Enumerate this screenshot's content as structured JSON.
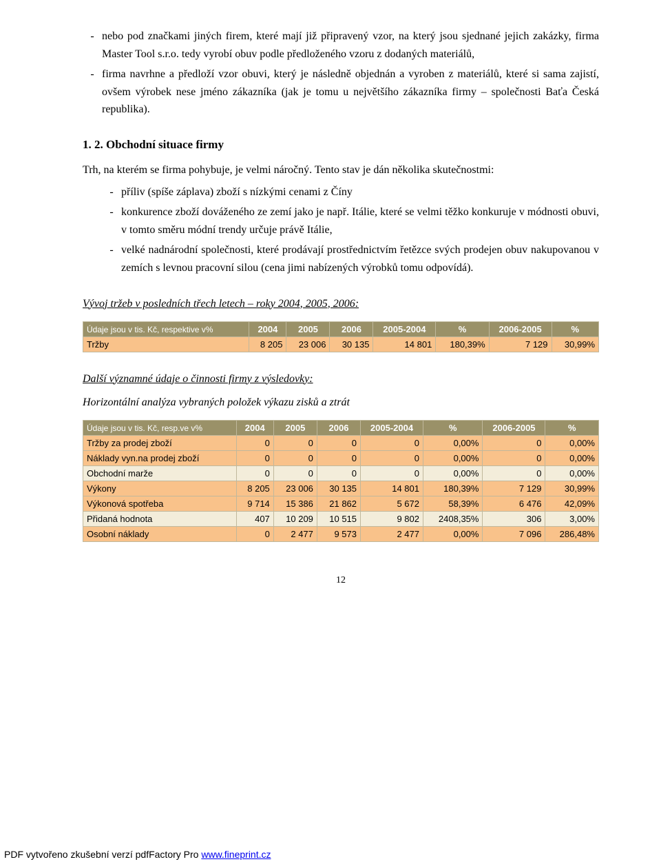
{
  "bullets_top": [
    "nebo pod značkami jiných firem, které mají již připravený vzor, na který jsou sjednané jejich zakázky, firma Master Tool s.r.o. tedy vyrobí obuv podle předloženého vzoru z dodaných materiálů,",
    "firma navrhne a předloží vzor obuvi, který je následně objednán a vyroben z materiálů, které si sama zajistí, ovšem výrobek nese jméno zákazníka (jak je tomu u největšího zákazníka firmy – společnosti Baťa Česká republika)."
  ],
  "heading": "1. 2. Obchodní situace firmy",
  "para1": "Trh, na kterém se firma pohybuje, je velmi náročný. Tento stav je dán několika skutečnostmi:",
  "bullets_mid": [
    "příliv (spíše záplava) zboží s nízkými cenami z Číny",
    "konkurence zboží dováženého ze zemí jako je např. Itálie, které se velmi těžko konkuruje v módnosti obuvi, v tomto směru módní trendy určuje právě Itálie,",
    "velké nadnárodní společnosti, které prodávají prostřednictvím řetězce svých prodejen obuv nakupovanou v zemích s levnou pracovní silou (cena jimi nabízených výrobků tomu odpovídá)."
  ],
  "section1": "Vývoj tržeb v posledních třech letech – roky 2004, 2005, 2006:",
  "table1": {
    "hdr_note": "Údaje jsou v tis. Kč, respektive v%",
    "cols": [
      "2004",
      "2005",
      "2006",
      "2005-2004",
      "%",
      "2006-2005",
      "%"
    ],
    "rows": [
      {
        "label": "Tržby",
        "cells": [
          "8 205",
          "23 006",
          "30 135",
          "14 801",
          "180,39%",
          "7 129",
          "30,99%"
        ],
        "class": "row-orange"
      }
    ]
  },
  "section2": "Další významné údaje o činnosti firmy z výsledovky:",
  "section2b": "Horizontální analýza vybraných položek výkazu zisků a ztrát",
  "table2": {
    "hdr_note": "Údaje jsou v tis. Kč, resp.ve v%",
    "cols": [
      "2004",
      "2005",
      "2006",
      "2005-2004",
      "%",
      "2006-2005",
      "%"
    ],
    "rows": [
      {
        "label": "Tržby za prodej zboží",
        "cells": [
          "0",
          "0",
          "0",
          "0",
          "0,00%",
          "0",
          "0,00%"
        ],
        "class": "row-orange"
      },
      {
        "label": "Náklady vyn.na prodej zboží",
        "cells": [
          "0",
          "0",
          "0",
          "0",
          "0,00%",
          "0",
          "0,00%"
        ],
        "class": "row-orange"
      },
      {
        "label": "Obchodní marže",
        "cells": [
          "0",
          "0",
          "0",
          "0",
          "0,00%",
          "0",
          "0,00%"
        ],
        "class": "row-cream"
      },
      {
        "label": "Výkony",
        "cells": [
          "8 205",
          "23 006",
          "30 135",
          "14 801",
          "180,39%",
          "7 129",
          "30,99%"
        ],
        "class": "row-orange"
      },
      {
        "label": "Výkonová spotřeba",
        "cells": [
          "9 714",
          "15 386",
          "21 862",
          "5 672",
          "58,39%",
          "6 476",
          "42,09%"
        ],
        "class": "row-orange"
      },
      {
        "label": "Přidaná hodnota",
        "cells": [
          "407",
          "10 209",
          "10 515",
          "9 802",
          "2408,35%",
          "306",
          "3,00%"
        ],
        "class": "row-cream"
      },
      {
        "label": "Osobní náklady",
        "cells": [
          "0",
          "2 477",
          "9 573",
          "2 477",
          "0,00%",
          "7 096",
          "286,48%"
        ],
        "class": "row-orange"
      }
    ]
  },
  "page_number": "12",
  "footer_text": "PDF vytvořeno zkušební verzí pdfFactory Pro ",
  "footer_link": "www.fineprint.cz"
}
